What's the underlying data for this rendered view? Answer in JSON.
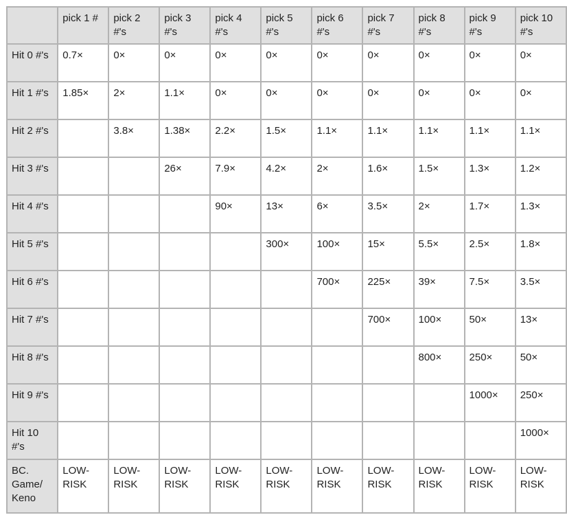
{
  "table": {
    "headers": [
      "",
      "pick 1 #",
      "pick 2 #'s",
      "pick 3 #'s",
      "pick 4 #'s",
      "pick 5 #'s",
      "pick 6 #'s",
      "pick 7 #'s",
      "pick 8 #'s",
      "pick 9 #'s",
      "pick 10 #'s"
    ],
    "rows": [
      {
        "label": "Hit 0 #'s",
        "cells": [
          "0.7×",
          "0×",
          "0×",
          "0×",
          "0×",
          "0×",
          "0×",
          "0×",
          "0×",
          "0×"
        ]
      },
      {
        "label": "Hit 1 #'s",
        "cells": [
          "1.85×",
          "2×",
          "1.1×",
          "0×",
          "0×",
          "0×",
          "0×",
          "0×",
          "0×",
          "0×"
        ]
      },
      {
        "label": "Hit 2 #'s",
        "cells": [
          "",
          "3.8×",
          "1.38×",
          "2.2×",
          "1.5×",
          "1.1×",
          "1.1×",
          "1.1×",
          "1.1×",
          "1.1×"
        ]
      },
      {
        "label": "Hit 3 #'s",
        "cells": [
          "",
          "",
          "26×",
          "7.9×",
          "4.2×",
          "2×",
          "1.6×",
          "1.5×",
          "1.3×",
          "1.2×"
        ]
      },
      {
        "label": "Hit 4 #'s",
        "cells": [
          "",
          "",
          "",
          "90×",
          "13×",
          "6×",
          "3.5×",
          "2×",
          "1.7×",
          "1.3×"
        ]
      },
      {
        "label": "Hit 5 #'s",
        "cells": [
          "",
          "",
          "",
          "",
          "300×",
          "100×",
          "15×",
          "5.5×",
          "2.5×",
          "1.8×"
        ]
      },
      {
        "label": "Hit 6 #'s",
        "cells": [
          "",
          "",
          "",
          "",
          "",
          "700×",
          "225×",
          "39×",
          "7.5×",
          "3.5×"
        ]
      },
      {
        "label": "Hit 7 #'s",
        "cells": [
          "",
          "",
          "",
          "",
          "",
          "",
          "700×",
          "100×",
          "50×",
          "13×"
        ]
      },
      {
        "label": "Hit 8 #'s",
        "cells": [
          "",
          "",
          "",
          "",
          "",
          "",
          "",
          "800×",
          "250×",
          "50×"
        ]
      },
      {
        "label": "Hit 9 #'s",
        "cells": [
          "",
          "",
          "",
          "",
          "",
          "",
          "",
          "",
          "1000×",
          "250×"
        ]
      },
      {
        "label": "Hit 10 #'s",
        "cells": [
          "",
          "",
          "",
          "",
          "",
          "",
          "",
          "",
          "",
          "1000×"
        ]
      },
      {
        "label": "BC. Game/ Keno",
        "cells": [
          "LOW-RISK",
          "LOW-RISK",
          "LOW-RISK",
          "LOW-RISK",
          "LOW-RISK",
          "LOW-RISK",
          "LOW-RISK",
          "LOW-RISK",
          "LOW-RISK",
          "LOW-RISK"
        ]
      }
    ]
  }
}
